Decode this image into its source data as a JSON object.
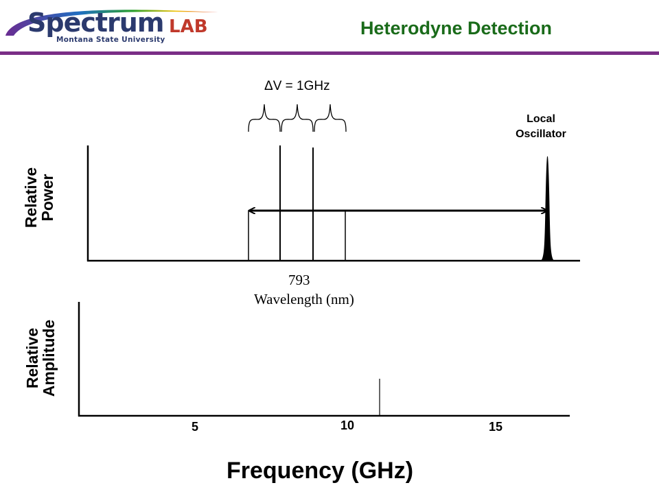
{
  "header": {
    "logo_main": "Spectrum",
    "logo_lab": "LAB",
    "logo_subtitle": "Montana State University",
    "title": "Heterodyne Detection",
    "bar_color": "#7a2e86",
    "title_color": "#1a6b1a"
  },
  "top_plot": {
    "y_label": "Relative Power",
    "spacing_label": "ΔV = 1GHz",
    "lo_label_line1": "Local",
    "lo_label_line2": "Oscillator",
    "wavelength_value": "793",
    "wavelength_label": "Wavelength (nm)"
  },
  "bottom_plot": {
    "y_label": "Relative Amplitude",
    "x_ticks": [
      "5",
      "10",
      "15"
    ],
    "x_title": "Frequency (GHz)"
  }
}
